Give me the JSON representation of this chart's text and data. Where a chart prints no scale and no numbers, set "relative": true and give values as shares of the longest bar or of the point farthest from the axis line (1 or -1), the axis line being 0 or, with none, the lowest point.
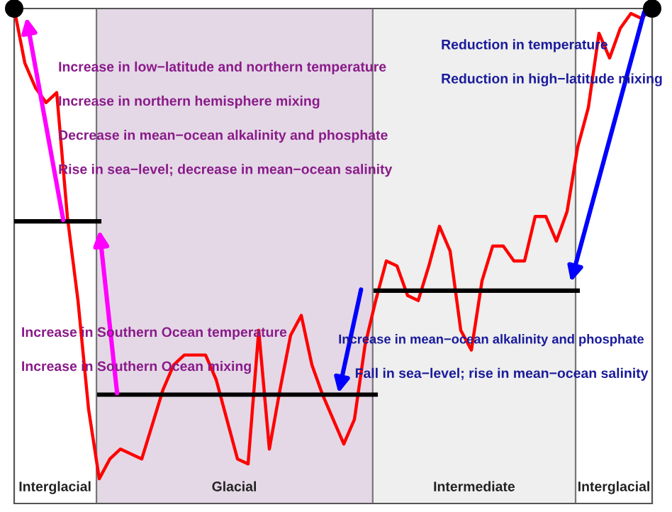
{
  "chart_data": {
    "type": "line",
    "relative": true,
    "categories": [
      null,
      null,
      null,
      null,
      null,
      null,
      null,
      null,
      null,
      null,
      null,
      null,
      null,
      null,
      null,
      null,
      null,
      null,
      null,
      null,
      null,
      null,
      null,
      null,
      null,
      null,
      null,
      null,
      null,
      null,
      null,
      null,
      null,
      null,
      null,
      null,
      null,
      null,
      null,
      null,
      null,
      null,
      null,
      null,
      null,
      null,
      null,
      null,
      null,
      null,
      null,
      null,
      null,
      null,
      null,
      null,
      null,
      null,
      null,
      null,
      null
    ],
    "series": [
      {
        "color": "#ff0000",
        "marker": "none",
        "values": [
          1.0,
          0.89,
          0.84,
          0.81,
          0.83,
          0.58,
          0.41,
          0.19,
          0.05,
          0.09,
          0.11,
          0.1,
          0.09,
          0.16,
          0.23,
          0.28,
          0.3,
          0.3,
          0.3,
          0.25,
          0.17,
          0.09,
          0.08,
          0.35,
          0.11,
          0.23,
          0.34,
          0.38,
          0.28,
          0.22,
          0.17,
          0.12,
          0.17,
          0.32,
          0.41,
          0.49,
          0.48,
          0.42,
          0.41,
          0.48,
          0.56,
          0.51,
          0.35,
          0.31,
          0.45,
          0.52,
          0.52,
          0.49,
          0.49,
          0.58,
          0.58,
          0.53,
          0.59,
          0.72,
          0.8,
          0.95,
          0.9,
          0.96,
          0.99,
          0.98,
          1.0
        ]
      },
      {
        "color": "#000000",
        "marker": "none",
        "values": [
          0.57,
          0.57,
          0.57,
          0.57,
          0.57,
          0.57,
          0.57,
          0.57,
          0.57,
          null,
          null,
          null,
          null,
          null,
          null,
          null,
          null,
          null,
          null,
          null,
          null,
          null,
          null,
          null,
          null,
          null,
          null,
          null,
          null,
          null,
          null,
          null,
          null,
          null,
          null,
          null,
          null,
          null,
          null,
          null,
          null,
          null,
          null,
          null,
          null,
          null,
          null,
          null,
          null,
          null,
          null,
          null,
          null,
          null,
          null,
          null,
          null,
          null,
          null,
          null,
          null
        ]
      },
      {
        "color": "#000000",
        "marker": "none",
        "values": [
          null,
          null,
          null,
          null,
          null,
          null,
          null,
          null,
          0.22,
          0.22,
          0.22,
          0.22,
          0.22,
          0.22,
          0.22,
          0.22,
          0.22,
          0.22,
          0.22,
          0.22,
          0.22,
          0.22,
          0.22,
          0.22,
          0.22,
          0.22,
          0.22,
          0.22,
          0.22,
          0.22,
          0.22,
          0.22,
          0.22,
          0.22,
          0.22,
          null,
          null,
          null,
          null,
          null,
          null,
          null,
          null,
          null,
          null,
          null,
          null,
          null,
          null,
          null,
          null,
          null,
          null,
          null,
          null,
          null,
          null,
          null,
          null,
          null,
          null
        ]
      },
      {
        "color": "#000000",
        "marker": "none",
        "values": [
          null,
          null,
          null,
          null,
          null,
          null,
          null,
          null,
          null,
          null,
          null,
          null,
          null,
          null,
          null,
          null,
          null,
          null,
          null,
          null,
          null,
          null,
          null,
          null,
          null,
          null,
          null,
          null,
          null,
          null,
          null,
          null,
          null,
          null,
          0.43,
          0.43,
          0.43,
          0.43,
          0.43,
          0.43,
          0.43,
          0.43,
          0.43,
          0.43,
          0.43,
          0.43,
          0.43,
          0.43,
          0.43,
          0.43,
          0.43,
          0.43,
          0.43,
          0.43,
          null,
          null,
          null,
          null,
          null,
          null,
          null
        ]
      }
    ],
    "annotations": [
      "Increase in low−latitude and northern temperature",
      "Increase in northern hemisphere mixing",
      "Decrease in mean−ocean alkalinity and phosphate",
      "Rise in sea−level; decrease in mean−ocean salinity",
      "Increase in Southern Ocean temperature",
      "Increase in Southern Ocean mixing",
      "Reduction in temperature",
      "Reduction in high−latitude mixing",
      "Increase in mean−ocean alkalinity and phosphate",
      "Fall in sea−level; rise in mean−ocean salinity",
      "Interglacial",
      "Glacial",
      "Intermediate",
      "Interglacial"
    ]
  }
}
